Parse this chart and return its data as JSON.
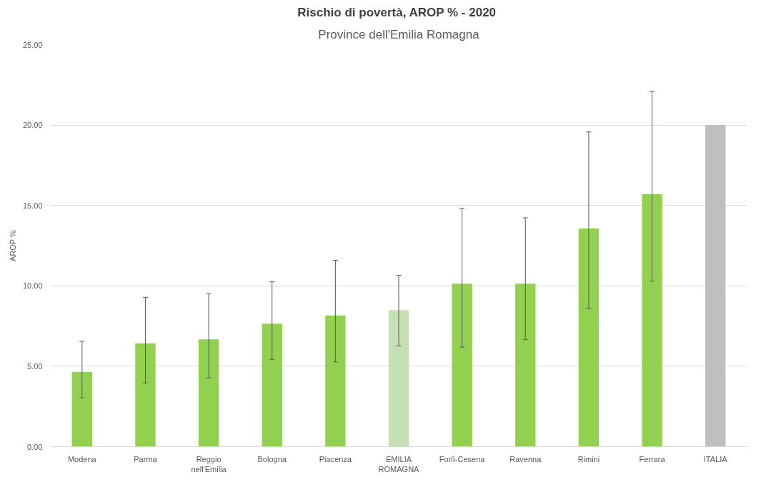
{
  "chart_data": {
    "type": "bar",
    "title": "Rischio di povertà, AROP %  - 2020",
    "subtitle": "Province dell'Emilia Romagna",
    "ylabel": "AROP %",
    "categories": [
      "Modena",
      "Parma",
      "Reggio\nnell'Emilia",
      "Bologna",
      "Piacenza",
      "EMILIA\nROMAGNA",
      "Forlì-Cesena",
      "Ravenna",
      "Rimini",
      "Ferrara",
      "ITALIA"
    ],
    "values": [
      4.65,
      6.43,
      6.67,
      7.65,
      8.16,
      8.49,
      10.14,
      10.14,
      13.57,
      15.7,
      20.0
    ],
    "colors": [
      "#92d050",
      "#92d050",
      "#92d050",
      "#92d050",
      "#92d050",
      "#c5e0b4",
      "#92d050",
      "#92d050",
      "#92d050",
      "#92d050",
      "#bfbfbf"
    ],
    "errors": [
      [
        3.03,
        6.55
      ],
      [
        3.97,
        9.29
      ],
      [
        4.28,
        9.52
      ],
      [
        5.43,
        10.25
      ],
      [
        5.27,
        11.59
      ],
      [
        6.26,
        10.66
      ],
      [
        6.19,
        14.82
      ],
      [
        6.65,
        14.23
      ],
      [
        8.58,
        19.57
      ],
      [
        10.29,
        22.09
      ],
      null
    ],
    "ylim": [
      0,
      25
    ],
    "yticks": [
      {
        "value": 0,
        "label": "0.00"
      },
      {
        "value": 5,
        "label": "5.00"
      },
      {
        "value": 10,
        "label": "10.00"
      },
      {
        "value": 15,
        "label": "15.00"
      },
      {
        "value": 20,
        "label": "20.00"
      },
      {
        "value": 25,
        "label": "25.00"
      }
    ],
    "grid": "y"
  }
}
